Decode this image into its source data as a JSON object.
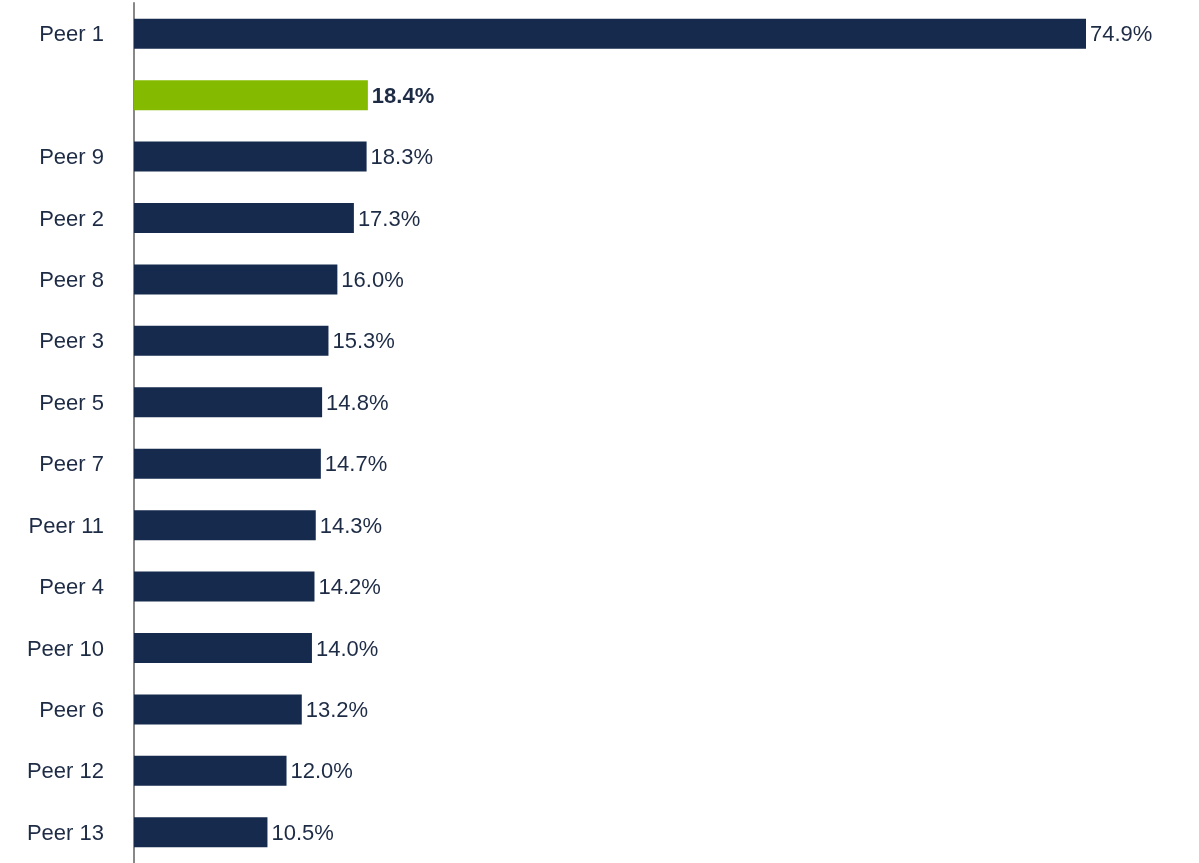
{
  "chart_data": {
    "type": "bar",
    "orientation": "horizontal",
    "categories": [
      "Peer 1",
      null,
      "Peer 9",
      "Peer 2",
      "Peer 8",
      "Peer 3",
      "Peer 5",
      "Peer 7",
      "Peer 11",
      "Peer 4",
      "Peer 10",
      "Peer 6",
      "Peer 12",
      "Peer 13"
    ],
    "values": [
      74.9,
      18.4,
      18.3,
      17.3,
      16.0,
      15.3,
      14.8,
      14.7,
      14.3,
      14.2,
      14.0,
      13.2,
      12.0,
      10.5
    ],
    "value_labels": [
      "74.9%",
      "18.4%",
      "18.3%",
      "17.3%",
      "16.0%",
      "15.3%",
      "14.8%",
      "14.7%",
      "14.3%",
      "14.2%",
      "14.0%",
      "13.2%",
      "12.0%",
      "10.5%"
    ],
    "colors": [
      "#152a4d",
      "#84bb00",
      "#152a4d",
      "#152a4d",
      "#152a4d",
      "#152a4d",
      "#152a4d",
      "#152a4d",
      "#152a4d",
      "#152a4d",
      "#152a4d",
      "#152a4d",
      "#152a4d",
      "#152a4d"
    ],
    "grid": false
  }
}
